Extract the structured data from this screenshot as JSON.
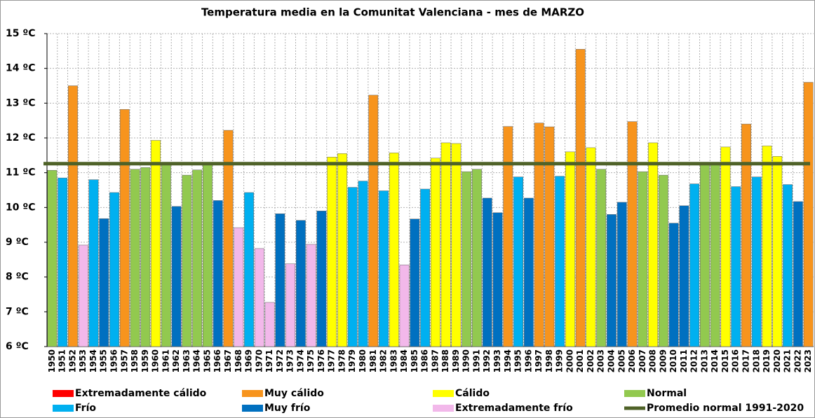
{
  "chart_data": {
    "type": "bar",
    "title": "Temperatura media en la Comunitat Valenciana - mes de MARZO",
    "categories": [
      "1950",
      "1951",
      "1952",
      "1953",
      "1954",
      "1955",
      "1956",
      "1957",
      "1958",
      "1959",
      "1960",
      "1961",
      "1962",
      "1963",
      "1964",
      "1965",
      "1966",
      "1967",
      "1968",
      "1969",
      "1970",
      "1971",
      "1972",
      "1973",
      "1974",
      "1975",
      "1976",
      "1977",
      "1978",
      "1979",
      "1980",
      "1981",
      "1982",
      "1983",
      "1984",
      "1985",
      "1986",
      "1987",
      "1988",
      "1989",
      "1990",
      "1991",
      "1992",
      "1993",
      "1994",
      "1995",
      "1996",
      "1997",
      "1998",
      "1999",
      "2000",
      "2001",
      "2002",
      "2003",
      "2004",
      "2005",
      "2006",
      "2007",
      "2008",
      "2009",
      "2010",
      "2011",
      "2012",
      "2013",
      "2014",
      "2015",
      "2016",
      "2017",
      "2018",
      "2019",
      "2020",
      "2021",
      "2022",
      "2023"
    ],
    "series": [
      {
        "name": "Extremadamente cálido",
        "color": "#ff0000",
        "values": [
          null,
          null,
          null,
          null,
          null,
          null,
          null,
          null,
          null,
          null,
          null,
          null,
          null,
          null,
          null,
          null,
          null,
          null,
          null,
          null,
          null,
          null,
          null,
          null,
          null,
          null,
          null,
          null,
          null,
          null,
          null,
          null,
          null,
          null,
          null,
          null,
          null,
          null,
          null,
          null,
          null,
          null,
          null,
          null,
          null,
          null,
          null,
          null,
          null,
          null,
          null,
          null,
          null,
          null,
          null,
          null,
          null,
          null,
          null,
          null,
          null,
          null,
          null,
          null,
          null,
          null,
          null,
          null,
          null,
          null,
          null,
          null,
          null,
          null
        ]
      },
      {
        "name": "Muy cálido",
        "color": "#f7941d",
        "values": [
          null,
          null,
          13.5,
          null,
          null,
          null,
          null,
          12.82,
          null,
          null,
          null,
          null,
          null,
          null,
          null,
          null,
          null,
          12.22,
          null,
          null,
          null,
          null,
          null,
          null,
          null,
          null,
          null,
          null,
          null,
          null,
          null,
          13.23,
          null,
          null,
          null,
          null,
          null,
          null,
          null,
          null,
          null,
          null,
          null,
          null,
          12.33,
          null,
          null,
          12.43,
          12.32,
          null,
          null,
          14.55,
          null,
          null,
          null,
          null,
          12.47,
          null,
          null,
          null,
          null,
          null,
          null,
          null,
          null,
          null,
          null,
          12.4,
          null,
          null,
          null,
          null,
          null,
          13.6
        ]
      },
      {
        "name": "Cálido",
        "color": "#ffff00",
        "values": [
          null,
          null,
          null,
          null,
          null,
          null,
          null,
          null,
          null,
          null,
          11.93,
          null,
          null,
          null,
          null,
          null,
          null,
          null,
          null,
          null,
          null,
          null,
          null,
          null,
          null,
          null,
          null,
          11.45,
          11.55,
          null,
          null,
          null,
          null,
          11.57,
          null,
          null,
          null,
          11.42,
          11.86,
          11.84,
          null,
          null,
          null,
          null,
          null,
          null,
          null,
          null,
          null,
          null,
          11.6,
          null,
          11.72,
          null,
          null,
          null,
          null,
          null,
          11.86,
          null,
          null,
          null,
          null,
          null,
          null,
          11.74,
          null,
          null,
          null,
          11.77,
          11.47,
          null,
          null,
          null
        ]
      },
      {
        "name": "Normal",
        "color": "#92c94f",
        "values": [
          11.07,
          null,
          null,
          null,
          null,
          null,
          null,
          null,
          11.1,
          11.15,
          null,
          11.28,
          null,
          10.93,
          11.08,
          11.22,
          null,
          null,
          null,
          null,
          null,
          null,
          null,
          null,
          null,
          null,
          null,
          null,
          null,
          null,
          null,
          null,
          null,
          null,
          null,
          null,
          null,
          null,
          null,
          null,
          11.03,
          11.1,
          null,
          null,
          null,
          null,
          null,
          null,
          null,
          null,
          null,
          null,
          null,
          11.1,
          null,
          null,
          null,
          11.03,
          null,
          10.93,
          null,
          null,
          null,
          11.28,
          11.3,
          null,
          null,
          null,
          null,
          null,
          null,
          null,
          null,
          null
        ]
      },
      {
        "name": "Frío",
        "color": "#00b0f0",
        "values": [
          null,
          10.85,
          null,
          null,
          10.8,
          null,
          10.43,
          null,
          null,
          null,
          null,
          null,
          null,
          null,
          null,
          null,
          null,
          null,
          null,
          10.43,
          null,
          null,
          null,
          null,
          null,
          null,
          null,
          null,
          null,
          10.58,
          10.76,
          null,
          10.48,
          null,
          null,
          null,
          10.53,
          null,
          null,
          null,
          null,
          null,
          null,
          null,
          null,
          10.88,
          null,
          null,
          null,
          10.9,
          null,
          null,
          null,
          null,
          null,
          null,
          null,
          null,
          null,
          null,
          null,
          null,
          10.68,
          null,
          null,
          null,
          10.6,
          null,
          10.88,
          null,
          null,
          10.66,
          null,
          null
        ]
      },
      {
        "name": "Muy frío",
        "color": "#0070c0",
        "values": [
          null,
          null,
          null,
          null,
          null,
          9.68,
          null,
          null,
          null,
          null,
          null,
          null,
          10.03,
          null,
          null,
          null,
          10.2,
          null,
          null,
          null,
          null,
          null,
          9.82,
          null,
          9.63,
          null,
          9.9,
          null,
          null,
          null,
          null,
          null,
          null,
          null,
          null,
          9.67,
          null,
          null,
          null,
          null,
          null,
          null,
          10.27,
          9.85,
          null,
          null,
          10.27,
          null,
          null,
          null,
          null,
          null,
          null,
          null,
          9.8,
          10.15,
          null,
          null,
          null,
          null,
          9.55,
          10.05,
          null,
          null,
          null,
          null,
          null,
          null,
          null,
          null,
          null,
          null,
          10.17,
          null
        ]
      },
      {
        "name": "Extremadamente frío",
        "color": "#f2b8ea",
        "values": [
          null,
          null,
          null,
          8.92,
          null,
          null,
          null,
          null,
          null,
          null,
          null,
          null,
          null,
          null,
          null,
          null,
          null,
          null,
          9.42,
          null,
          8.82,
          7.27,
          null,
          8.38,
          null,
          8.94,
          null,
          null,
          null,
          null,
          null,
          null,
          null,
          null,
          8.35,
          null,
          null,
          null,
          null,
          null,
          null,
          null,
          null,
          null,
          null,
          null,
          null,
          null,
          null,
          null,
          null,
          null,
          null,
          null,
          null,
          null,
          null,
          null,
          null,
          null,
          null,
          null,
          null,
          null,
          null,
          null,
          null,
          null,
          null,
          null,
          null,
          null,
          null,
          null
        ]
      }
    ],
    "reference_line": {
      "name": "Promedio normal 1991-2020",
      "value": 11.26,
      "color": "#4f6228"
    },
    "ylim": [
      6,
      15
    ],
    "yticks": [
      {
        "value": 6,
        "label": "6 ºC"
      },
      {
        "value": 7,
        "label": "7 ºC"
      },
      {
        "value": 8,
        "label": "8 ºC"
      },
      {
        "value": 9,
        "label": "9 ºC"
      },
      {
        "value": 10,
        "label": "10 ºC"
      },
      {
        "value": 11,
        "label": "11 ºC"
      },
      {
        "value": 12,
        "label": "12 ºC"
      },
      {
        "value": 13,
        "label": "13 ºC"
      },
      {
        "value": 14,
        "label": "14 ºC"
      },
      {
        "value": 15,
        "label": "15 ºC"
      }
    ],
    "grid": true
  }
}
